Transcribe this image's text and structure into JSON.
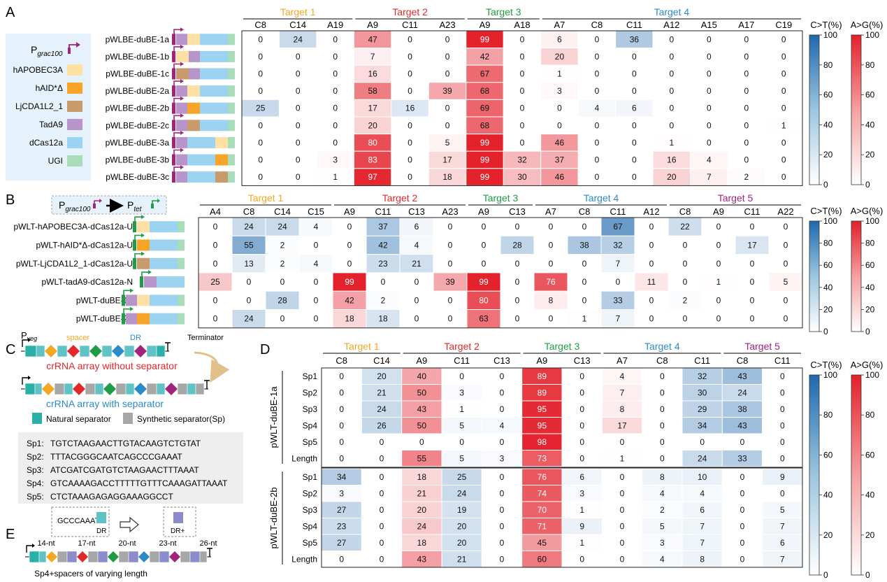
{
  "panels": {
    "A": {
      "letter": "A",
      "legend": {
        "promoter": "P",
        "promoter_sub": "grac100",
        "items": [
          {
            "label": "hAPOBEC3A",
            "color": "#fde1a4"
          },
          {
            "label": "hAID*Δ",
            "color": "#f7a528"
          },
          {
            "label": "LjCDA1L2_1",
            "color": "#c99a6a"
          },
          {
            "label": "TadA9",
            "color": "#b795cb"
          },
          {
            "label": "dCas12a",
            "color": "#9bd3f1"
          },
          {
            "label": "UGI",
            "color": "#a9dcb8"
          }
        ]
      },
      "targets": [
        {
          "label": "Target 1",
          "color": "#f5a623",
          "cols": [
            0,
            2
          ]
        },
        {
          "label": "Target 2",
          "color": "#e3272b",
          "cols": [
            3,
            5
          ]
        },
        {
          "label": "Target 3",
          "color": "#1f9c45",
          "cols": [
            6,
            7
          ]
        },
        {
          "label": "Target 4",
          "color": "#2b8bc9",
          "cols": [
            8,
            14
          ]
        }
      ],
      "columns": [
        "C8",
        "C14",
        "A19",
        "A9",
        "C11",
        "A23",
        "A9",
        "A18",
        "A7",
        "C8",
        "C11",
        "A12",
        "A15",
        "A17",
        "C19"
      ],
      "rows": [
        {
          "label": "pWLBE-duBE-1a",
          "values": [
            0,
            24,
            0,
            47,
            0,
            0,
            99,
            0,
            6,
            0,
            36,
            0,
            0,
            0,
            0
          ]
        },
        {
          "label": "pWLBE-duBE-1b",
          "values": [
            0,
            0,
            0,
            7,
            0,
            0,
            42,
            0,
            20,
            0,
            0,
            0,
            0,
            0,
            0
          ]
        },
        {
          "label": "pWLBE-duBE-1c",
          "values": [
            0,
            0,
            0,
            16,
            0,
            0,
            67,
            0,
            1,
            0,
            0,
            0,
            0,
            0,
            0
          ]
        },
        {
          "label": "pWLBE-duBE-2a",
          "values": [
            0,
            0,
            0,
            58,
            0,
            39,
            68,
            0,
            3,
            0,
            0,
            0,
            0,
            0,
            0
          ]
        },
        {
          "label": "pWLBE-duBE-2b",
          "values": [
            25,
            0,
            0,
            17,
            16,
            0,
            69,
            0,
            0,
            4,
            6,
            0,
            0,
            0,
            0
          ]
        },
        {
          "label": "pWLBE-duBE-2c",
          "values": [
            0,
            0,
            0,
            20,
            0,
            0,
            68,
            0,
            0,
            0,
            0,
            0,
            0,
            0,
            1
          ]
        },
        {
          "label": "pWLBE-duBE-3a",
          "values": [
            0,
            0,
            0,
            80,
            0,
            5,
            99,
            0,
            46,
            0,
            0,
            1,
            0,
            0,
            0
          ]
        },
        {
          "label": "pWLBE-duBE-3b",
          "values": [
            0,
            0,
            3,
            83,
            0,
            17,
            99,
            32,
            37,
            0,
            0,
            16,
            4,
            0,
            0
          ]
        },
        {
          "label": "pWLBE-duBE-3c",
          "values": [
            0,
            0,
            1,
            97,
            0,
            18,
            99,
            30,
            46,
            0,
            0,
            20,
            7,
            2,
            0
          ]
        }
      ]
    },
    "B": {
      "letter": "B",
      "promoter_a": "P",
      "promoter_a_sub": "grac100",
      "promoter_b": "P",
      "promoter_b_sub": "tet",
      "targets": [
        {
          "label": "Target 1",
          "color": "#f5a623",
          "cols": [
            0,
            3
          ]
        },
        {
          "label": "Target 2",
          "color": "#e3272b",
          "cols": [
            4,
            7
          ]
        },
        {
          "label": "Target 3",
          "color": "#1f9c45",
          "cols": [
            8,
            9
          ]
        },
        {
          "label": "Target 4",
          "color": "#2b8bc9",
          "cols": [
            10,
            13
          ]
        },
        {
          "label": "Target 5",
          "color": "#a0237c",
          "cols": [
            14,
            17
          ]
        }
      ],
      "columns": [
        "A4",
        "C8",
        "C14",
        "C15",
        "A9",
        "C11",
        "C13",
        "A23",
        "A9",
        "C13",
        "A7",
        "C8",
        "C11",
        "A12",
        "C8",
        "A9",
        "C11",
        "A22"
      ],
      "rows": [
        {
          "label": "pWLT-hAPOBEC3A-dCas12a-U",
          "values": [
            0,
            24,
            24,
            4,
            0,
            37,
            6,
            0,
            0,
            0,
            0,
            0,
            67,
            0,
            22,
            0,
            0,
            0
          ]
        },
        {
          "label": "pWLT-hAID*Δ-dCas12a-U",
          "values": [
            0,
            55,
            2,
            0,
            0,
            42,
            4,
            0,
            0,
            28,
            0,
            38,
            32,
            0,
            0,
            0,
            17,
            0
          ]
        },
        {
          "label": "pWLT-LjCDA1L2_1-dCas12a-U",
          "values": [
            0,
            13,
            2,
            4,
            0,
            23,
            21,
            0,
            0,
            0,
            0,
            0,
            7,
            0,
            0,
            0,
            0,
            0
          ]
        },
        {
          "label": "pWLT-tadA9-dCas12a-N",
          "values": [
            25,
            0,
            0,
            0,
            99,
            0,
            0,
            39,
            99,
            0,
            76,
            0,
            0,
            11,
            0,
            1,
            0,
            5
          ]
        },
        {
          "label": "pWLT-duBE-1a",
          "values": [
            0,
            0,
            28,
            0,
            42,
            2,
            0,
            0,
            80,
            0,
            8,
            0,
            33,
            0,
            2,
            0,
            0,
            0
          ]
        },
        {
          "label": "pWLT-duBE-2b",
          "values": [
            0,
            24,
            0,
            0,
            18,
            18,
            0,
            0,
            63,
            0,
            0,
            1,
            7,
            0,
            0,
            0,
            0,
            0
          ]
        }
      ]
    },
    "C": {
      "letter": "C",
      "promoter": "P",
      "promoter_sub": "veg",
      "spacer": "spacer",
      "dr": "DR",
      "terminator": "Terminator",
      "title_without": "crRNA array without separator",
      "title_with": "crRNA array with separator",
      "natural_separator": "Natural separator",
      "synthetic_separator": "Synthetic separator(Sp)",
      "sequences": [
        {
          "name": "Sp1:",
          "seq": "TGTCTAAGAACTTGTACAAGTCTGTAT"
        },
        {
          "name": "Sp2:",
          "seq": "TTTACGGGCAATCAGCCCGAAAT"
        },
        {
          "name": "Sp3:",
          "seq": "ATCGATCGATGTCTAAGAACTTTAAAT"
        },
        {
          "name": "Sp4:",
          "seq": "GTCAAAAGACCTTTTTGTTTCAAAGATTAAAT"
        },
        {
          "name": "Sp5:",
          "seq": "CTCTAAAGAGAGGAAAGGCCT"
        }
      ]
    },
    "D": {
      "letter": "D",
      "targets": [
        {
          "label": "Target 1",
          "color": "#f5a623",
          "cols": [
            0,
            1
          ]
        },
        {
          "label": "Target 2",
          "color": "#e3272b",
          "cols": [
            2,
            4
          ]
        },
        {
          "label": "Target 3",
          "color": "#1f9c45",
          "cols": [
            5,
            6
          ]
        },
        {
          "label": "Target 4",
          "color": "#2b8bc9",
          "cols": [
            7,
            9
          ]
        },
        {
          "label": "Target 5",
          "color": "#a0237c",
          "cols": [
            10,
            11
          ]
        }
      ],
      "columns": [
        "C8",
        "C14",
        "A9",
        "C11",
        "C13",
        "A9",
        "C13",
        "A7",
        "C8",
        "C11",
        "C8",
        "C11"
      ],
      "groups": [
        {
          "label": "pWLT-duBE-1a",
          "rows": [
            {
              "label": "Sp1",
              "values": [
                0,
                20,
                40,
                0,
                0,
                89,
                0,
                4,
                0,
                32,
                43,
                0
              ]
            },
            {
              "label": "Sp2",
              "values": [
                0,
                21,
                50,
                3,
                0,
                89,
                0,
                7,
                0,
                30,
                24,
                0
              ]
            },
            {
              "label": "Sp3",
              "values": [
                0,
                24,
                43,
                1,
                0,
                95,
                0,
                8,
                0,
                29,
                38,
                0
              ]
            },
            {
              "label": "Sp4",
              "values": [
                0,
                26,
                50,
                5,
                4,
                95,
                0,
                17,
                0,
                34,
                43,
                0
              ]
            },
            {
              "label": "Sp5",
              "values": [
                0,
                0,
                0,
                0,
                0,
                98,
                0,
                0,
                0,
                0,
                0,
                0
              ]
            },
            {
              "label": "Length",
              "values": [
                0,
                0,
                55,
                5,
                3,
                73,
                0,
                1,
                0,
                24,
                33,
                0
              ]
            }
          ]
        },
        {
          "label": "pWLT-duBE-2b",
          "rows": [
            {
              "label": "Sp1",
              "values": [
                34,
                0,
                18,
                25,
                0,
                76,
                6,
                0,
                8,
                10,
                0,
                9
              ]
            },
            {
              "label": "Sp2",
              "values": [
                3,
                0,
                21,
                24,
                0,
                74,
                3,
                0,
                4,
                4,
                0,
                0
              ]
            },
            {
              "label": "Sp3",
              "values": [
                27,
                0,
                20,
                19,
                0,
                70,
                1,
                0,
                2,
                6,
                0,
                5
              ]
            },
            {
              "label": "Sp4",
              "values": [
                23,
                0,
                24,
                20,
                0,
                71,
                9,
                0,
                5,
                7,
                0,
                7
              ]
            },
            {
              "label": "Sp5",
              "values": [
                27,
                0,
                18,
                20,
                0,
                45,
                1,
                0,
                3,
                7,
                0,
                6
              ]
            },
            {
              "label": "Length",
              "values": [
                0,
                0,
                43,
                21,
                0,
                60,
                0,
                0,
                4,
                8,
                0,
                7
              ]
            }
          ]
        }
      ]
    },
    "E": {
      "letter": "E",
      "prefix": "GCCCAAAT +",
      "dr": "DR",
      "dr_plus": "DR+",
      "lengths": [
        "14-nt",
        "17-nt",
        "20-nt",
        "23-nt",
        "26-nt"
      ],
      "caption": "Sp4+spacers of varying length"
    }
  },
  "colorbars": {
    "ct_label": "C>T(%)",
    "ag_label": "A>G(%)",
    "ticks": [
      "100",
      "80",
      "60",
      "40",
      "20",
      "0"
    ]
  },
  "colors": {
    "blue_max": "#1f68ad",
    "red_max": "#e3202a"
  }
}
